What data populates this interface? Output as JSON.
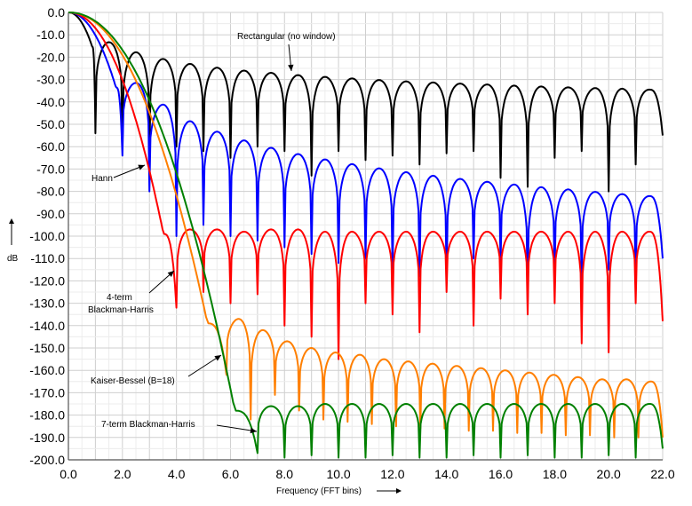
{
  "chart_data": {
    "type": "line",
    "title": "",
    "xlabel": "Frequency (FFT bins)",
    "ylabel": "dB",
    "xlim": [
      0,
      22
    ],
    "ylim": [
      -200,
      0
    ],
    "x_ticks": [
      "0.0",
      "2.0",
      "4.0",
      "6.0",
      "8.0",
      "10.0",
      "12.0",
      "14.0",
      "16.0",
      "18.0",
      "20.0",
      "22.0"
    ],
    "y_ticks": [
      "0.0",
      "-10.0",
      "-20.0",
      "-30.0",
      "-40.0",
      "-50.0",
      "-60.0",
      "-70.0",
      "-80.0",
      "-90.0",
      "-100.0",
      "-110.0",
      "-120.0",
      "-130.0",
      "-140.0",
      "-150.0",
      "-160.0",
      "-170.0",
      "-180.0",
      "-190.0",
      "-200.0"
    ],
    "grid": true,
    "series": [
      {
        "name": "Rectangular (no window)",
        "color": "#000000",
        "main_lobe_end": 1,
        "main_null_depth": -54,
        "sidelobe_peaks": [
          -13.3,
          -17.8,
          -20.8,
          -23.0,
          -24.7,
          -26.0,
          -27.0,
          -28.0,
          -28.8,
          -29.5,
          -30.2,
          -30.8,
          -31.3,
          -31.8,
          -32.2,
          -32.7,
          -33.1,
          -33.5,
          -33.8,
          -34.1,
          -34.5
        ],
        "null_depths": [
          -54,
          -61,
          -64,
          -60,
          -62,
          -65,
          -60,
          -62,
          -73,
          -62,
          -66,
          -64,
          -68,
          -63,
          -62,
          -74,
          -78,
          -65,
          -62,
          -80,
          -68,
          -55
        ]
      },
      {
        "name": "Hann",
        "color": "#0000ff",
        "main_lobe_end": 2,
        "main_null_depth": -64,
        "sidelobe_peaks": [
          -31.5,
          -41.2,
          -48.6,
          -53.3,
          -57.2,
          -60.5,
          -63.3,
          -65.7,
          -67.8,
          -69.7,
          -71.4,
          -73.0,
          -74.4,
          -75.7,
          -76.9,
          -78.1,
          -79.1,
          -80.2,
          -81.2,
          -82.1
        ],
        "null_depths": [
          -64,
          -80,
          -100,
          -95,
          -100,
          -102,
          -105,
          -108,
          -112,
          -110,
          -115,
          -118,
          -120,
          -110,
          -112,
          -130,
          -118,
          -122,
          -115,
          -118,
          -110
        ]
      },
      {
        "name": "4-term Blackman-Harris",
        "color": "#ff0000",
        "main_lobe_end": 4,
        "main_null_depth": -132,
        "sidelobe_peaks": [
          -97,
          -97,
          -98,
          -97,
          -97,
          -98,
          -98,
          -98,
          -98,
          -98,
          -98,
          -98,
          -98,
          -98,
          -98,
          -98,
          -98,
          -98
        ],
        "null_depths": [
          -132,
          -125,
          -130,
          -126,
          -140,
          -145,
          -155,
          -130,
          -135,
          -143,
          -125,
          -140,
          -128,
          -135,
          -130,
          -148,
          -152,
          -130,
          -138
        ],
        "shoulder": [
          -108,
          -104
        ]
      },
      {
        "name": "Kaiser-Bessel (B=18)",
        "color": "#ff7f00",
        "main_lobe_end": 5.85,
        "main_null_depth": -162,
        "sidelobe_peaks": [
          -137,
          -142,
          -147,
          -150,
          -152,
          -153,
          -155,
          -156,
          -157,
          -158,
          -159,
          -160,
          -161,
          -162,
          -163,
          -164,
          -164,
          -165
        ],
        "null_depths": [
          -162,
          -182,
          -171,
          -178,
          -182,
          -183,
          -184,
          -185,
          -186,
          -186,
          -187,
          -187,
          -188,
          -188,
          -189,
          -189,
          -190,
          -190,
          -190
        ]
      },
      {
        "name": "7-term Blackman-Harris",
        "color": "#008000",
        "main_lobe_end": 7,
        "main_null_depth": -197,
        "sidelobe_peaks": [
          -176,
          -176,
          -175,
          -175,
          -175,
          -175,
          -175,
          -175,
          -175,
          -175,
          -175,
          -175,
          -175,
          -175,
          -175
        ],
        "null_depths": [
          -197,
          -199,
          -198,
          -199,
          -199,
          -198,
          -199,
          -199,
          -198,
          -199,
          -198,
          -199,
          -199,
          -198,
          -199,
          -195
        ],
        "shoulder": [
          -180
        ]
      }
    ],
    "annotations": [
      {
        "text": "Rectangular (no window)",
        "target_series": 0
      },
      {
        "text": "Hann",
        "target_series": 1
      },
      {
        "text": "4-term",
        "target_series": 2
      },
      {
        "text": "Blackman-Harris",
        "target_series": 2
      },
      {
        "text": "Kaiser-Bessel (B=18)",
        "target_series": 3
      },
      {
        "text": "7-term Blackman-Harris",
        "target_series": 4
      }
    ]
  }
}
